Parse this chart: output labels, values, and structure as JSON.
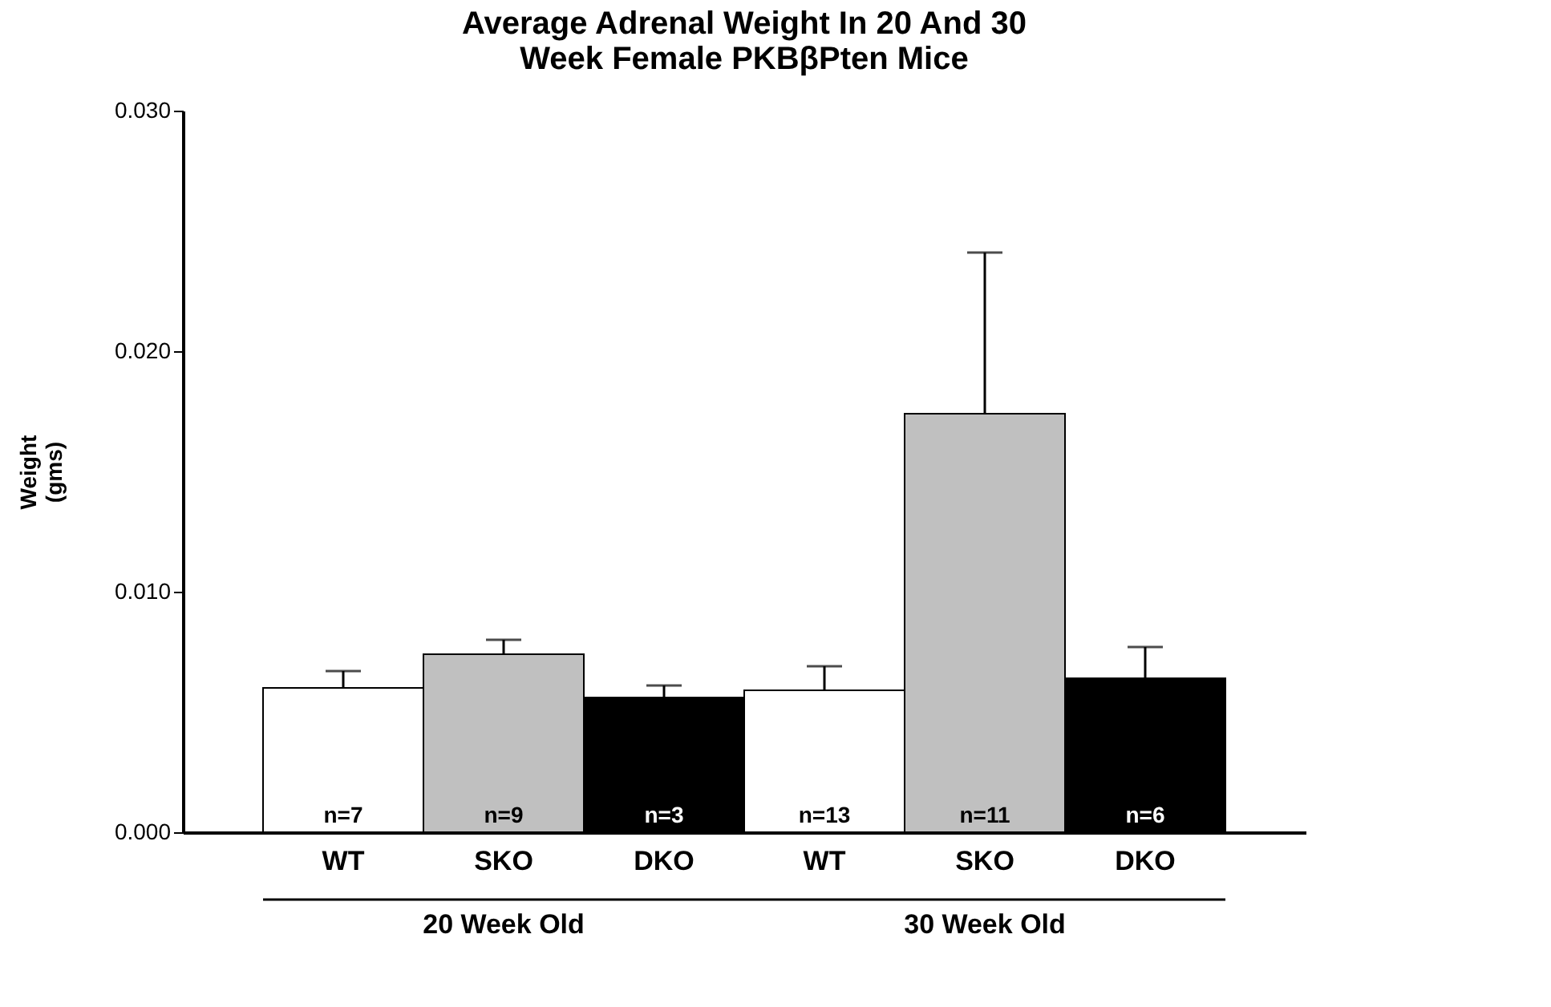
{
  "chart_data": {
    "type": "bar",
    "title": "Average Adrenal Weight In 20 And 30 Week Female PKBβPten Mice",
    "ylabel": "Weight\n(gms)",
    "categories": [
      "WT",
      "SKO",
      "DKO",
      "WT",
      "SKO",
      "DKO"
    ],
    "values": [
      0.006,
      0.0074,
      0.0056,
      0.0059,
      0.0174,
      0.0064
    ],
    "colors": [
      "#ffffff",
      "#c0c0c0",
      "#000000",
      "#ffffff",
      "#c0c0c0",
      "#000000"
    ],
    "errors": [
      [
        0.006,
        0.0067
      ],
      [
        0.0074,
        0.008
      ],
      [
        0.0056,
        0.0061
      ],
      [
        0.0059,
        0.0069
      ],
      [
        0.0174,
        0.0241
      ],
      [
        0.0064,
        0.0077
      ]
    ],
    "ylim": [
      0,
      0.03
    ],
    "yticks": [
      {
        "value": 0,
        "label": "0.000"
      },
      {
        "value": 0.01,
        "label": "0.010"
      },
      {
        "value": 0.02,
        "label": "0.020"
      },
      {
        "value": 0.03,
        "label": "0.030"
      }
    ],
    "annotations": [
      "n=7",
      "n=9",
      "n=3",
      "n=13",
      "n=11",
      "n=6",
      "20 Week Old",
      "30 Week Old"
    ],
    "grid": false
  }
}
